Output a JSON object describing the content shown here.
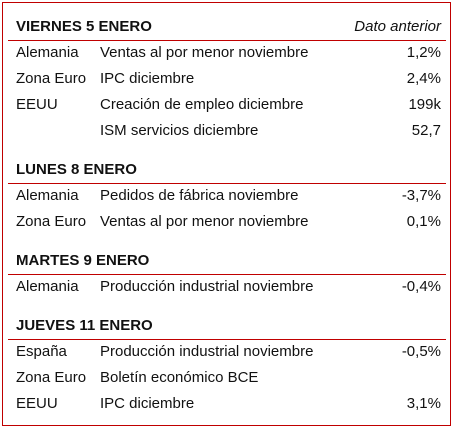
{
  "sections": [
    {
      "title": "VIERNES 5 ENERO",
      "column_header": "Dato anterior",
      "rows": [
        {
          "country": "Alemania",
          "indicator": "Ventas al por menor noviembre",
          "value": "1,2%"
        },
        {
          "country": "Zona Euro",
          "indicator": "IPC diciembre",
          "value": "2,4%"
        },
        {
          "country": "EEUU",
          "indicator": "Creación de empleo diciembre",
          "value": "199k"
        },
        {
          "country": null,
          "indicator": "ISM servicios diciembre",
          "value": "52,7"
        }
      ]
    },
    {
      "title": "LUNES 8 ENERO",
      "rows": [
        {
          "country": "Alemania",
          "indicator": "Pedidos de fábrica noviembre",
          "value": "-3,7%"
        },
        {
          "country": "Zona Euro",
          "indicator": "Ventas al por menor noviembre",
          "value": "0,1%"
        }
      ]
    },
    {
      "title": "MARTES 9 ENERO",
      "rows": [
        {
          "country": "Alemania",
          "indicator": "Producción industrial noviembre",
          "value": "-0,4%"
        }
      ]
    },
    {
      "title": "JUEVES 11 ENERO",
      "rows": [
        {
          "country": "España",
          "indicator": "Producción industrial noviembre",
          "value": "-0,5%"
        },
        {
          "country": "Zona Euro",
          "indicator": "Boletín económico BCE",
          "value": null
        },
        {
          "country": "EEUU",
          "indicator": "IPC diciembre",
          "value": "3,1%"
        }
      ]
    }
  ]
}
